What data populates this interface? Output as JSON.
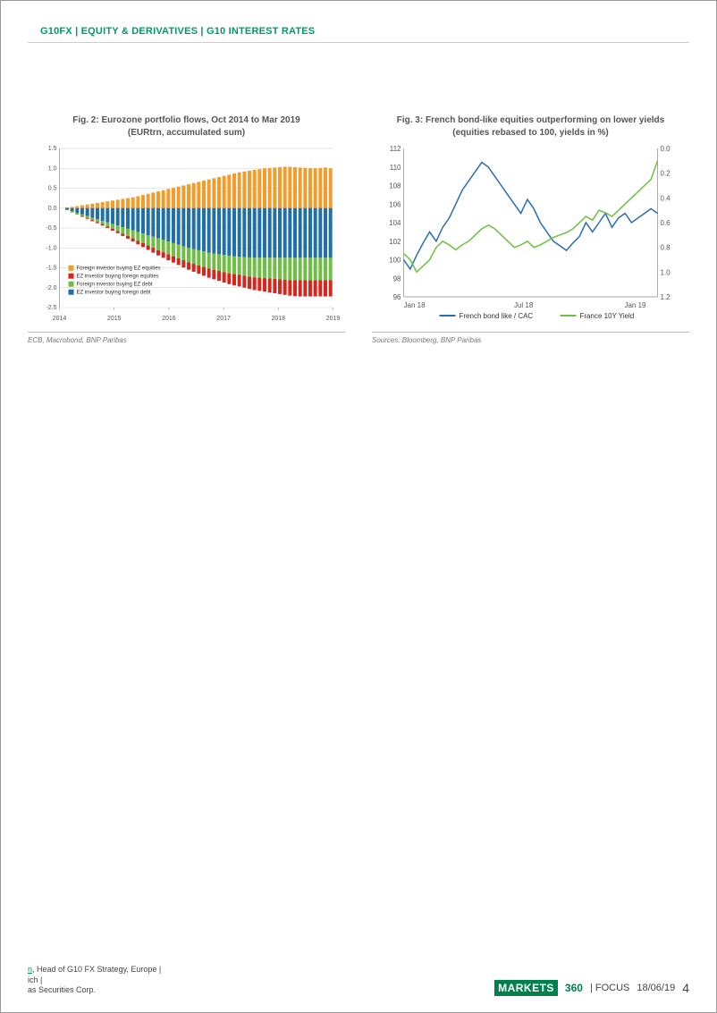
{
  "header": {
    "band": "G10FX | EQUITY & DERIVATIVES | G10 INTEREST RATES",
    "band_color": "#009966"
  },
  "fig2": {
    "type": "bar_stacked",
    "title_line1": "Fig. 2: Eurozone portfolio flows, Oct 2014 to Mar 2019",
    "title_line2": "(EURtrn, accumulated sum)",
    "source": "ECB, Macrobond, BNP Paribas",
    "x_labels": [
      "2014",
      "2015",
      "2016",
      "2017",
      "2018",
      "2019"
    ],
    "ylim": [
      -2.5,
      1.5
    ],
    "ytick_step": 0.5,
    "colors": {
      "foreign_ez_equities": "#f39c2c",
      "ez_foreign_equities": "#d9261c",
      "foreign_ez_debt": "#6fbf44",
      "ez_foreign_debt": "#1f6fa8",
      "grid": "#cfcfcf",
      "axis_text": "#555555",
      "background": "#ffffff"
    },
    "legend": [
      {
        "label": "Foreign investor buying EZ equities",
        "key": "foreign_ez_equities"
      },
      {
        "label": "EZ investor buying foreign equities",
        "key": "ez_foreign_equities"
      },
      {
        "label": "Foreign investor buying EZ debt",
        "key": "foreign_ez_debt"
      },
      {
        "label": "EZ investor buying foreign debt",
        "key": "ez_foreign_debt"
      }
    ],
    "n_points": 54,
    "series": {
      "foreign_ez_equities_pos": [
        0.0,
        0.02,
        0.03,
        0.05,
        0.07,
        0.09,
        0.11,
        0.13,
        0.15,
        0.17,
        0.19,
        0.21,
        0.23,
        0.25,
        0.27,
        0.3,
        0.33,
        0.36,
        0.39,
        0.42,
        0.45,
        0.48,
        0.51,
        0.54,
        0.57,
        0.6,
        0.63,
        0.66,
        0.69,
        0.72,
        0.75,
        0.78,
        0.81,
        0.84,
        0.87,
        0.9,
        0.92,
        0.94,
        0.96,
        0.98,
        1.0,
        1.01,
        1.02,
        1.03,
        1.04,
        1.04,
        1.03,
        1.02,
        1.01,
        1.0,
        1.0,
        1.01,
        1.02,
        1.0
      ],
      "ez_foreign_debt_neg": [
        0.0,
        -0.04,
        -0.08,
        -0.12,
        -0.16,
        -0.2,
        -0.24,
        -0.28,
        -0.32,
        -0.36,
        -0.4,
        -0.44,
        -0.48,
        -0.52,
        -0.56,
        -0.6,
        -0.64,
        -0.68,
        -0.72,
        -0.76,
        -0.8,
        -0.84,
        -0.88,
        -0.92,
        -0.96,
        -1.0,
        -1.03,
        -1.06,
        -1.09,
        -1.12,
        -1.14,
        -1.16,
        -1.18,
        -1.2,
        -1.21,
        -1.22,
        -1.23,
        -1.24,
        -1.25,
        -1.25,
        -1.25,
        -1.25,
        -1.25,
        -1.25,
        -1.25,
        -1.25,
        -1.25,
        -1.25,
        -1.25,
        -1.25,
        -1.25,
        -1.25,
        -1.25,
        -1.25
      ],
      "foreign_ez_debt_neg": [
        0.0,
        -0.01,
        -0.02,
        -0.03,
        -0.04,
        -0.05,
        -0.06,
        -0.07,
        -0.08,
        -0.1,
        -0.12,
        -0.14,
        -0.16,
        -0.18,
        -0.2,
        -0.22,
        -0.24,
        -0.26,
        -0.28,
        -0.3,
        -0.31,
        -0.32,
        -0.33,
        -0.34,
        -0.35,
        -0.36,
        -0.37,
        -0.38,
        -0.39,
        -0.4,
        -0.41,
        -0.42,
        -0.43,
        -0.44,
        -0.45,
        -0.46,
        -0.47,
        -0.48,
        -0.49,
        -0.5,
        -0.51,
        -0.52,
        -0.53,
        -0.54,
        -0.55,
        -0.56,
        -0.56,
        -0.56,
        -0.56,
        -0.56,
        -0.56,
        -0.56,
        -0.56,
        -0.56
      ],
      "ez_foreign_equities_neg": [
        0.0,
        -0.0,
        -0.01,
        -0.01,
        -0.02,
        -0.02,
        -0.03,
        -0.03,
        -0.04,
        -0.04,
        -0.05,
        -0.05,
        -0.06,
        -0.07,
        -0.08,
        -0.09,
        -0.1,
        -0.11,
        -0.12,
        -0.13,
        -0.14,
        -0.15,
        -0.16,
        -0.17,
        -0.18,
        -0.19,
        -0.2,
        -0.21,
        -0.22,
        -0.23,
        -0.24,
        -0.25,
        -0.26,
        -0.27,
        -0.28,
        -0.29,
        -0.3,
        -0.31,
        -0.32,
        -0.33,
        -0.34,
        -0.35,
        -0.36,
        -0.37,
        -0.38,
        -0.39,
        -0.4,
        -0.41,
        -0.41,
        -0.41,
        -0.41,
        -0.41,
        -0.41,
        -0.41
      ]
    },
    "bar_width": 0.7,
    "legend_fontsize": 6,
    "axis_fontsize": 7
  },
  "fig3": {
    "type": "line_dual_axis",
    "title_line1": "Fig. 3: French bond-like equities outperforming on lower yields",
    "title_line2": "(equities rebased to 100, yields in %)",
    "source": "Sources: Bloomberg, BNP Paribas",
    "x_labels": [
      "Jan 18",
      "Jul 18",
      "Jan 19"
    ],
    "y_left": {
      "min": 96,
      "max": 112,
      "step": 2
    },
    "y_right": {
      "min": 0.0,
      "max": 1.2,
      "step": 0.2,
      "inverted": true
    },
    "colors": {
      "bond_like": "#2a6db0",
      "france_10y": "#6fbf44",
      "grid": "#cfcfcf",
      "axis_text": "#555555",
      "background": "#ffffff"
    },
    "legend": [
      {
        "label": "French bond like / CAC",
        "key": "bond_like"
      },
      {
        "label": "France 10Y Yield",
        "key": "france_10y"
      }
    ],
    "bond_like_values": [
      100.0,
      99.0,
      100.5,
      101.8,
      103.0,
      102.0,
      103.5,
      104.5,
      106.0,
      107.5,
      108.5,
      109.5,
      110.5,
      110.0,
      109.0,
      108.0,
      107.0,
      106.0,
      105.0,
      106.5,
      105.5,
      104.0,
      103.0,
      102.0,
      101.5,
      101.0,
      101.8,
      102.5,
      104.0,
      103.0,
      104.0,
      105.0,
      103.5,
      104.5,
      105.0,
      104.0,
      104.5,
      105.0,
      105.5,
      105.0
    ],
    "france_10y_values": [
      0.85,
      0.9,
      1.0,
      0.95,
      0.9,
      0.8,
      0.75,
      0.78,
      0.82,
      0.78,
      0.75,
      0.7,
      0.65,
      0.62,
      0.65,
      0.7,
      0.75,
      0.8,
      0.78,
      0.75,
      0.8,
      0.78,
      0.75,
      0.72,
      0.7,
      0.68,
      0.65,
      0.6,
      0.55,
      0.58,
      0.5,
      0.52,
      0.55,
      0.5,
      0.45,
      0.4,
      0.35,
      0.3,
      0.25,
      0.1
    ],
    "line_width": 1.5,
    "legend_fontsize": 8,
    "axis_fontsize": 8
  },
  "footer": {
    "left_line1_link": "n",
    "left_line1_rest": ", Head of G10 FX Strategy, Europe |",
    "left_line2": "ich |",
    "left_line3": "as Securities Corp.",
    "brand_box": "MARKETS",
    "brand_num": "360",
    "focus": "FOCUS",
    "date": "18/06/19",
    "page": "4"
  }
}
